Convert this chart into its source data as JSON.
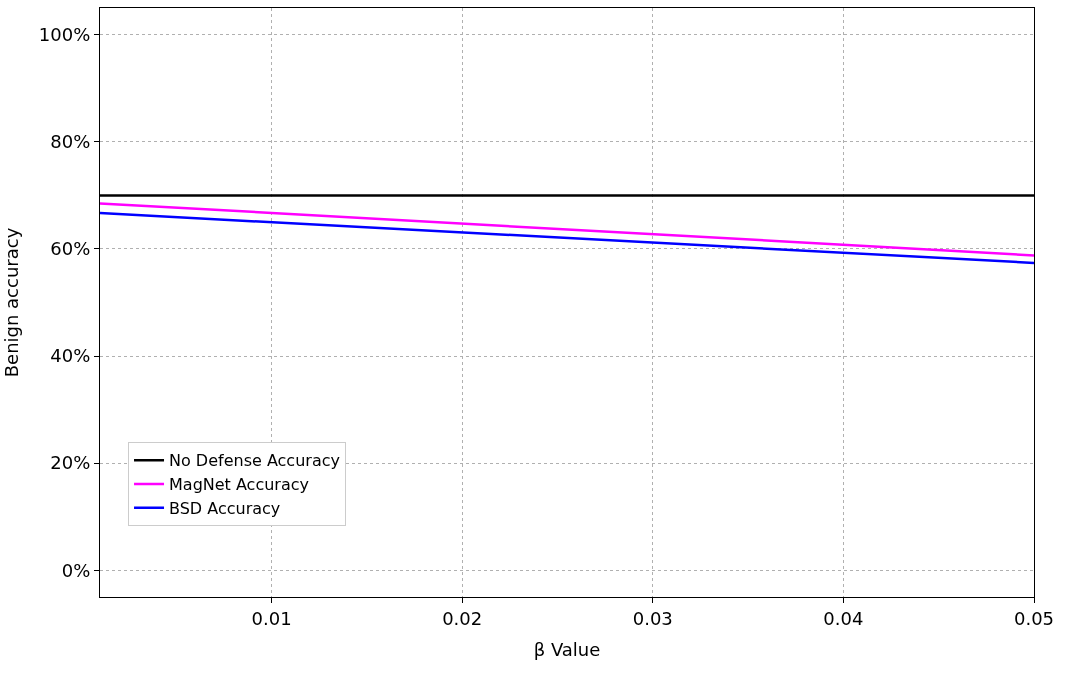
{
  "chart_data": {
    "type": "line",
    "xlabel": "β Value",
    "ylabel": "Benign accuracy",
    "x": [
      0.001,
      0.05
    ],
    "series": [
      {
        "name": "No Defense Accuracy",
        "color": "#000000",
        "values": [
          70,
          70
        ]
      },
      {
        "name": "MagNet Accuracy",
        "color": "#ff00ff",
        "values": [
          68.5,
          58.8
        ]
      },
      {
        "name": "BSD Accuracy",
        "color": "#0000ff",
        "values": [
          66.7,
          57.4
        ]
      }
    ],
    "xlim": [
      0.001,
      0.05
    ],
    "xticks": [
      0.01,
      0.02,
      0.03,
      0.04,
      0.05
    ],
    "ylim": [
      -5,
      105
    ],
    "yticks": [
      {
        "value": 0,
        "label": "0%"
      },
      {
        "value": 20,
        "label": "20%"
      },
      {
        "value": 40,
        "label": "40%"
      },
      {
        "value": 60,
        "label": "60%"
      },
      {
        "value": 80,
        "label": "80%"
      },
      {
        "value": 100,
        "label": "100%"
      }
    ],
    "grid": true,
    "legend": "bottom left",
    "line_style": "solid",
    "marker": "none"
  }
}
